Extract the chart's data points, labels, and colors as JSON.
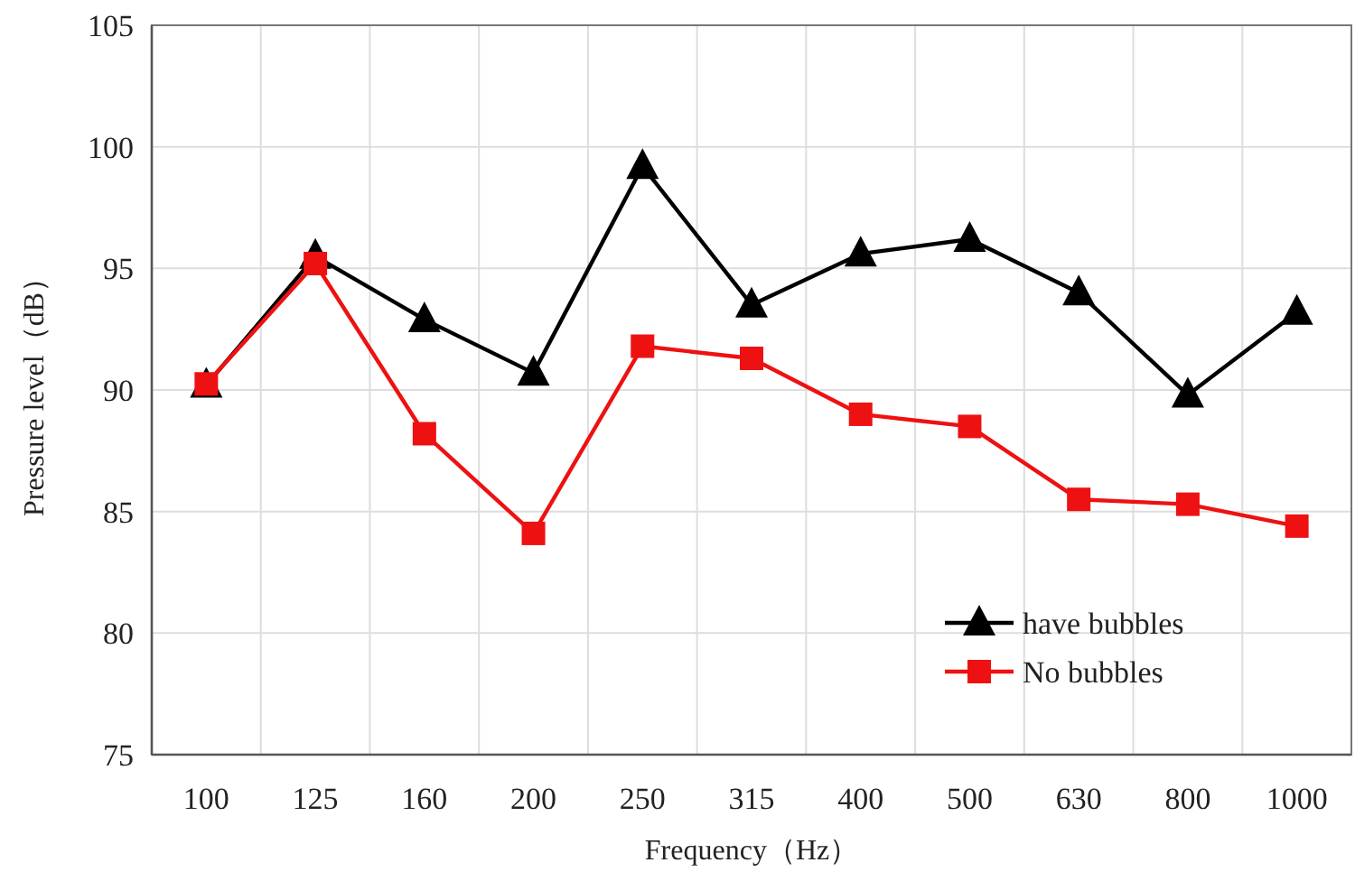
{
  "chart_data": {
    "type": "line",
    "xlabel": "Frequency（Hz）",
    "ylabel": "Pressure level（dB）",
    "categories": [
      "100",
      "125",
      "160",
      "200",
      "250",
      "315",
      "400",
      "500",
      "630",
      "800",
      "1000"
    ],
    "series": [
      {
        "name": "have bubbles",
        "color": "#000000",
        "marker": "triangle",
        "values": [
          90.2,
          95.5,
          92.9,
          90.7,
          99.2,
          93.5,
          95.6,
          96.2,
          94.0,
          89.8,
          93.2
        ]
      },
      {
        "name": "No bubbles",
        "color": "#ee1111",
        "marker": "square",
        "values": [
          90.25,
          95.2,
          88.2,
          84.1,
          91.8,
          91.3,
          89.0,
          88.5,
          85.5,
          85.3,
          84.4
        ]
      }
    ],
    "ylim": [
      75,
      105
    ],
    "yticks": [
      75,
      80,
      85,
      90,
      95,
      100,
      105
    ],
    "grid": true,
    "legend": "bottom right"
  }
}
